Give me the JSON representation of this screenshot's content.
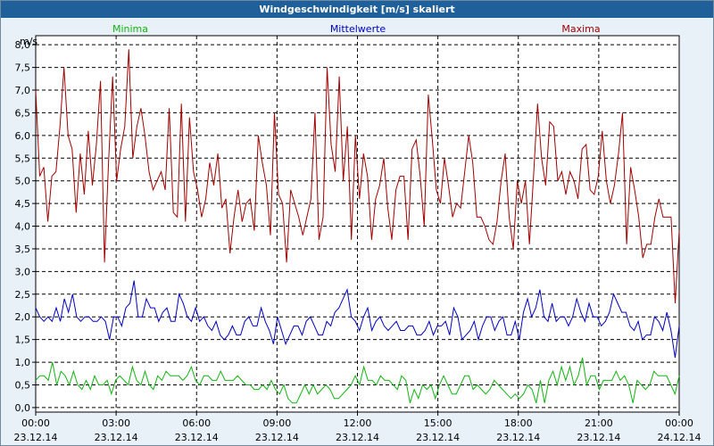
{
  "window": {
    "title": "Windgeschwindigkeit [m/s] skaliert"
  },
  "colors": {
    "minima": "#12b312",
    "mittel": "#0000c0",
    "maxima": "#a00000",
    "grid": "#000000"
  },
  "chart_data": {
    "type": "line",
    "title": "Windgeschwindigkeit [m/s] skaliert",
    "ylabel": "m/s",
    "xlabel": "",
    "ylim": [
      -0.1,
      8.2
    ],
    "xlim": [
      0,
      24
    ],
    "yticks": [
      "0,0",
      "0,5",
      "1,0",
      "1,5",
      "2,0",
      "2,5",
      "3,0",
      "3,5",
      "4,0",
      "4,5",
      "5,0",
      "5,5",
      "6,0",
      "6,5",
      "7,0",
      "7,5",
      "8,0"
    ],
    "xticks": [
      {
        "time": "00:00",
        "date": "23.12.14"
      },
      {
        "time": "03:00",
        "date": "23.12.14"
      },
      {
        "time": "06:00",
        "date": "23.12.14"
      },
      {
        "time": "09:00",
        "date": "23.12.14"
      },
      {
        "time": "12:00",
        "date": "23.12.14"
      },
      {
        "time": "15:00",
        "date": "23.12.14"
      },
      {
        "time": "18:00",
        "date": "23.12.14"
      },
      {
        "time": "21:00",
        "date": "23.12.14"
      },
      {
        "time": "00:00",
        "date": "24.12.14"
      }
    ],
    "grid": true,
    "legend_position": "top",
    "series": [
      {
        "name": "Minima",
        "color": "#12b312",
        "values": [
          0.6,
          0.7,
          0.7,
          0.6,
          1.0,
          0.5,
          0.8,
          0.7,
          0.5,
          0.8,
          0.5,
          0.4,
          0.6,
          0.4,
          0.7,
          0.5,
          0.5,
          0.6,
          0.3,
          0.6,
          0.7,
          0.6,
          0.5,
          0.9,
          0.6,
          0.5,
          0.8,
          0.5,
          0.4,
          0.7,
          0.6,
          0.8,
          0.7,
          0.7,
          0.7,
          0.6,
          0.7,
          0.9,
          0.6,
          0.5,
          0.7,
          0.7,
          0.6,
          0.6,
          0.8,
          0.6,
          0.6,
          0.6,
          0.7,
          0.6,
          0.5,
          0.5,
          0.4,
          0.4,
          0.5,
          0.4,
          0.6,
          0.4,
          0.3,
          0.5,
          0.2,
          0.1,
          0.1,
          0.3,
          0.5,
          0.3,
          0.5,
          0.3,
          0.4,
          0.5,
          0.4,
          0.2,
          0.2,
          0.3,
          0.4,
          0.5,
          0.7,
          0.5,
          0.9,
          0.6,
          0.6,
          0.5,
          0.7,
          0.6,
          0.6,
          0.5,
          0.4,
          0.7,
          0.6,
          0.1,
          0.4,
          0.2,
          0.5,
          0.4,
          0.5,
          0.2,
          0.5,
          0.7,
          0.5,
          0.3,
          0.3,
          0.5,
          0.7,
          0.7,
          0.4,
          0.5,
          0.4,
          0.3,
          0.4,
          0.6,
          0.5,
          0.4,
          0.3,
          0.2,
          0.3,
          0.2,
          0.3,
          0.5,
          0.4,
          0.1,
          0.6,
          0.1,
          0.6,
          0.8,
          0.5,
          0.9,
          0.6,
          0.9,
          0.5,
          0.7,
          1.1,
          0.5,
          0.7,
          0.7,
          0.4,
          0.6,
          0.6,
          0.6,
          0.8,
          0.6,
          0.7,
          0.5,
          0.1,
          0.6,
          0.5,
          0.4,
          0.5,
          0.8,
          0.7,
          0.7,
          0.7,
          0.5,
          0.3,
          0.7
        ]
      },
      {
        "name": "Mittelwerte",
        "color": "#0000c0",
        "values": [
          2.2,
          2.0,
          1.9,
          2.0,
          1.9,
          2.2,
          1.9,
          2.4,
          2.1,
          2.5,
          2.0,
          1.9,
          2.0,
          2.0,
          1.9,
          1.9,
          2.0,
          1.9,
          1.5,
          2.0,
          2.0,
          1.8,
          2.2,
          2.3,
          2.8,
          2.0,
          2.0,
          2.4,
          2.2,
          2.2,
          1.9,
          2.1,
          2.2,
          1.9,
          1.9,
          2.5,
          2.3,
          2.0,
          1.9,
          2.2,
          1.9,
          2.0,
          1.8,
          1.7,
          1.9,
          1.6,
          1.5,
          1.6,
          1.8,
          1.6,
          1.6,
          1.9,
          2.0,
          1.8,
          1.8,
          2.2,
          1.9,
          1.7,
          1.4,
          2.0,
          1.7,
          1.4,
          1.6,
          1.8,
          1.8,
          1.6,
          1.9,
          2.0,
          1.8,
          1.6,
          1.6,
          1.9,
          1.8,
          2.1,
          2.2,
          2.4,
          2.6,
          2.0,
          1.9,
          1.7,
          2.0,
          2.2,
          1.7,
          1.9,
          2.0,
          1.8,
          1.7,
          1.8,
          1.9,
          1.7,
          1.7,
          1.8,
          1.8,
          1.6,
          1.6,
          1.7,
          1.9,
          1.6,
          1.8,
          1.8,
          1.9,
          1.6,
          2.2,
          2.0,
          1.5,
          1.6,
          1.7,
          1.9,
          1.5,
          1.8,
          2.0,
          2.0,
          1.7,
          1.9,
          2.0,
          1.6,
          1.6,
          1.9,
          1.5,
          2.1,
          2.4,
          2.0,
          2.2,
          2.6,
          2.0,
          1.9,
          2.3,
          1.9,
          2.0,
          2.0,
          1.8,
          2.0,
          2.4,
          2.1,
          1.9,
          2.3,
          2.0,
          2.0,
          1.8,
          1.9,
          2.1,
          2.5,
          2.3,
          2.1,
          2.1,
          1.8,
          1.7,
          1.9,
          1.5,
          1.6,
          1.6,
          2.0,
          1.9,
          1.7,
          2.1,
          1.7,
          1.1,
          1.8
        ]
      },
      {
        "name": "Maxima",
        "color": "#a00000",
        "values": [
          7.0,
          5.1,
          5.3,
          4.1,
          5.1,
          5.2,
          6.2,
          7.5,
          6.0,
          5.7,
          4.3,
          5.6,
          4.7,
          6.1,
          4.9,
          5.8,
          7.2,
          3.2,
          5.4,
          7.3,
          5.0,
          5.7,
          6.2,
          7.9,
          5.5,
          6.2,
          6.6,
          6.0,
          5.2,
          4.8,
          5.0,
          5.2,
          4.8,
          6.6,
          4.3,
          4.2,
          6.7,
          4.1,
          6.4,
          5.2,
          4.8,
          4.2,
          4.6,
          5.4,
          4.9,
          5.6,
          4.4,
          4.6,
          3.4,
          4.2,
          4.8,
          4.1,
          4.5,
          4.6,
          3.9,
          6.0,
          5.4,
          4.9,
          3.8,
          6.5,
          4.7,
          4.5,
          3.2,
          4.8,
          4.5,
          4.2,
          3.8,
          4.2,
          4.6,
          6.5,
          3.7,
          4.2,
          7.5,
          5.8,
          5.2,
          7.3,
          5.0,
          6.2,
          3.7,
          6.0,
          4.6,
          5.6,
          5.1,
          3.7,
          4.6,
          4.9,
          5.5,
          4.4,
          3.7,
          4.8,
          5.1,
          5.1,
          3.7,
          5.7,
          5.9,
          5.1,
          4.0,
          6.9,
          5.9,
          4.8,
          4.5,
          5.5,
          4.9,
          4.2,
          4.5,
          4.4,
          5.2,
          6.0,
          5.4,
          4.2,
          4.2,
          4.0,
          3.7,
          3.6,
          4.1,
          5.0,
          5.6,
          4.2,
          3.5,
          5.0,
          4.5,
          5.0,
          3.6,
          5.1,
          6.7,
          5.5,
          4.9,
          6.3,
          6.2,
          5.0,
          5.2,
          4.7,
          5.2,
          5.0,
          4.6,
          5.7,
          5.8,
          4.8,
          4.7,
          5.1,
          6.1,
          5.0,
          4.5,
          4.9,
          5.6,
          6.5,
          3.6,
          5.3,
          4.8,
          4.2,
          3.3,
          3.6,
          3.6,
          4.2,
          4.6,
          4.2,
          4.2,
          4.2,
          2.3,
          3.9
        ]
      }
    ]
  }
}
